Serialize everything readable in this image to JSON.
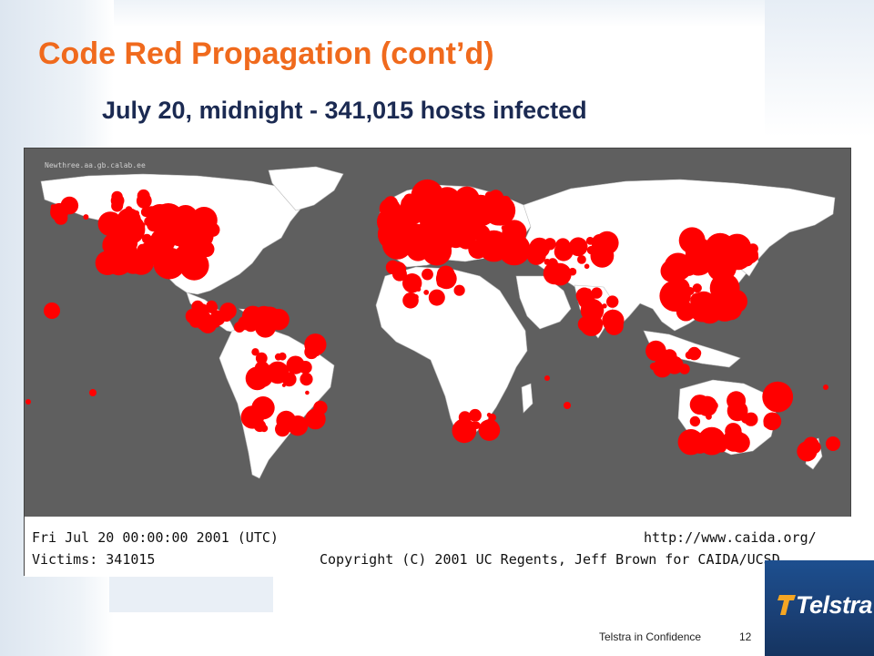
{
  "slide": {
    "title": "Code Red Propagation (cont’d)",
    "subtitle": "July 20, midnight - 341,015 hosts infected"
  },
  "map": {
    "header_text": "Newthree.aa.gb.calab.ee",
    "timestamp": "Fri Jul 20 00:00:00 2001 (UTC)",
    "victims": "Victims: 341015",
    "url": "http://www.caida.org/",
    "copyright": "Copyright (C) 2001 UC Regents, Jeff Brown for CAIDA/UCSD",
    "colors": {
      "ocean": "#5f5f5f",
      "land": "#ffffff",
      "infection": "#ff0000"
    }
  },
  "footer": {
    "confidentiality": "Telstra in Confidence",
    "page_number": "12"
  },
  "logo": {
    "text": "Telstra",
    "colors": {
      "background": "#1d4f8f",
      "mark": "#f5a623"
    }
  }
}
